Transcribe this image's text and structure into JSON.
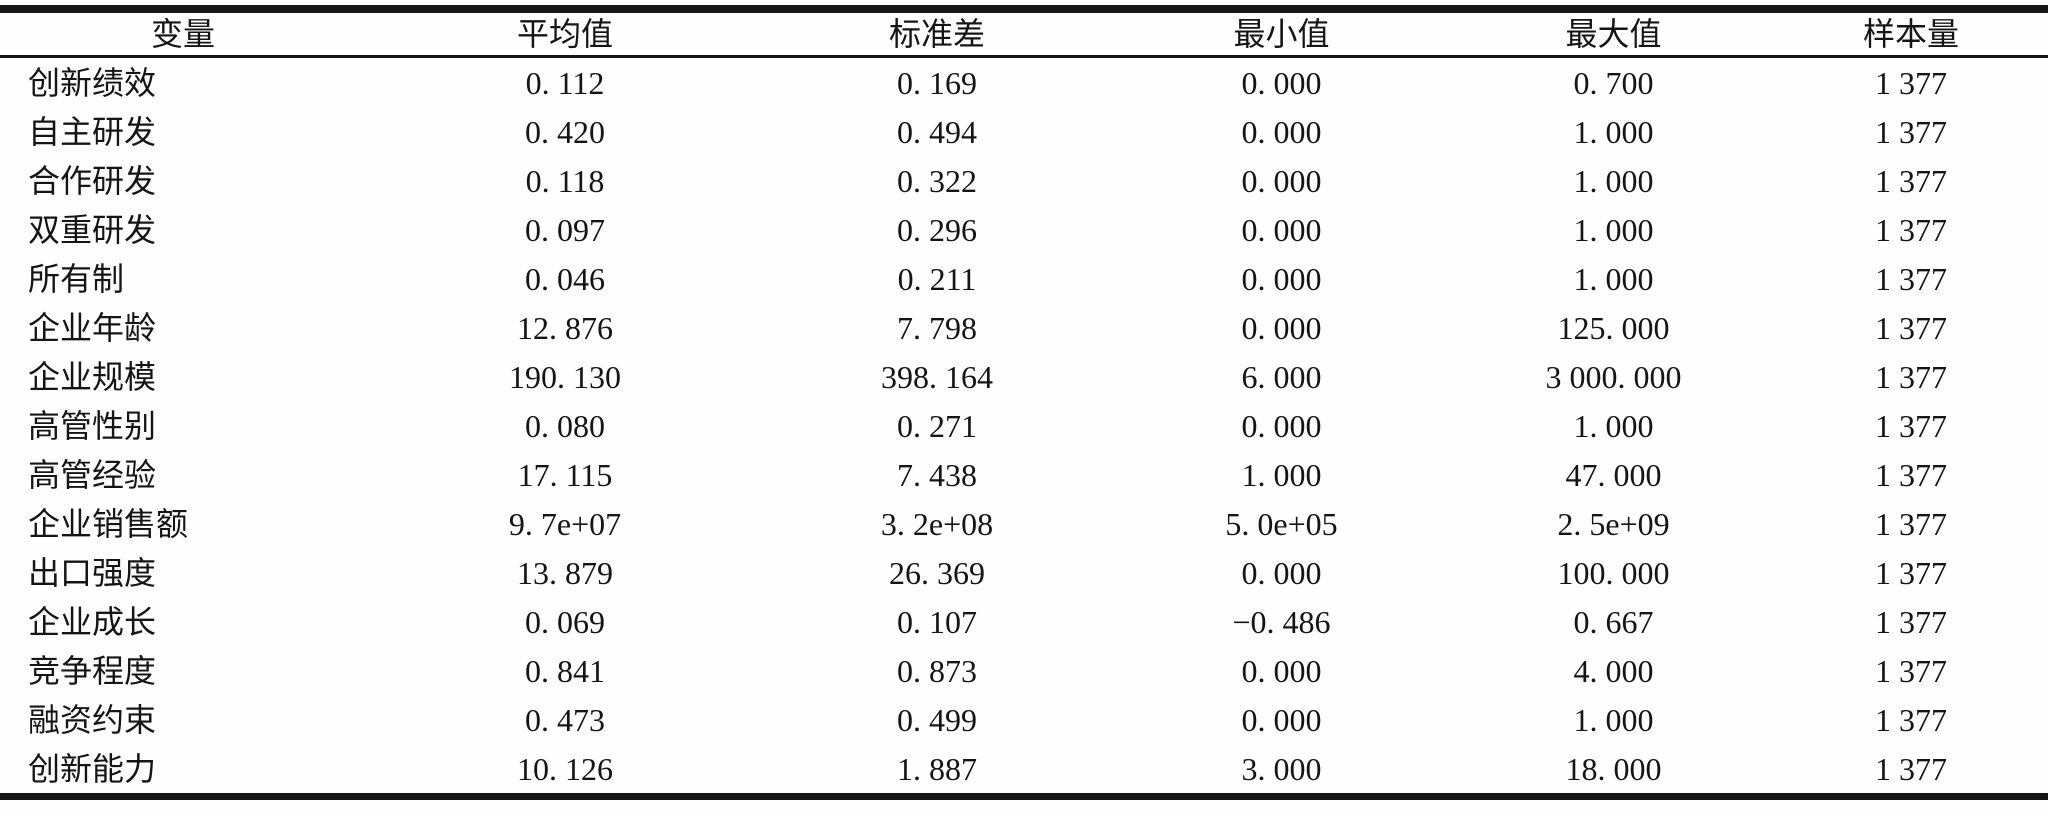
{
  "colors": {
    "text": "#151515",
    "rule": "#151515",
    "background": "#fefefe"
  },
  "table": {
    "headers": [
      "变量",
      "平均值",
      "标准差",
      "最小值",
      "最大值",
      "样本量"
    ],
    "rows": [
      [
        "创新绩效",
        "0. 112",
        "0. 169",
        "0. 000",
        "0. 700",
        "1 377"
      ],
      [
        "自主研发",
        "0. 420",
        "0. 494",
        "0. 000",
        "1. 000",
        "1 377"
      ],
      [
        "合作研发",
        "0. 118",
        "0. 322",
        "0. 000",
        "1. 000",
        "1 377"
      ],
      [
        "双重研发",
        "0. 097",
        "0. 296",
        "0. 000",
        "1. 000",
        "1 377"
      ],
      [
        "所有制",
        "0. 046",
        "0. 211",
        "0. 000",
        "1. 000",
        "1 377"
      ],
      [
        "企业年龄",
        "12. 876",
        "7. 798",
        "0. 000",
        "125. 000",
        "1 377"
      ],
      [
        "企业规模",
        "190. 130",
        "398. 164",
        "6. 000",
        "3 000. 000",
        "1 377"
      ],
      [
        "高管性别",
        "0. 080",
        "0. 271",
        "0. 000",
        "1. 000",
        "1 377"
      ],
      [
        "高管经验",
        "17. 115",
        "7. 438",
        "1. 000",
        "47. 000",
        "1 377"
      ],
      [
        "企业销售额",
        "9. 7e+07",
        "3. 2e+08",
        "5. 0e+05",
        "2. 5e+09",
        "1 377"
      ],
      [
        "出口强度",
        "13. 879",
        "26. 369",
        "0. 000",
        "100. 000",
        "1 377"
      ],
      [
        "企业成长",
        "0. 069",
        "0. 107",
        "−0. 486",
        "0. 667",
        "1 377"
      ],
      [
        "竞争程度",
        "0. 841",
        "0. 873",
        "0. 000",
        "4. 000",
        "1 377"
      ],
      [
        "融资约束",
        "0. 473",
        "0. 499",
        "0. 000",
        "1. 000",
        "1 377"
      ],
      [
        "创新能力",
        "10. 126",
        "1. 887",
        "3. 000",
        "18. 000",
        "1 377"
      ]
    ]
  }
}
